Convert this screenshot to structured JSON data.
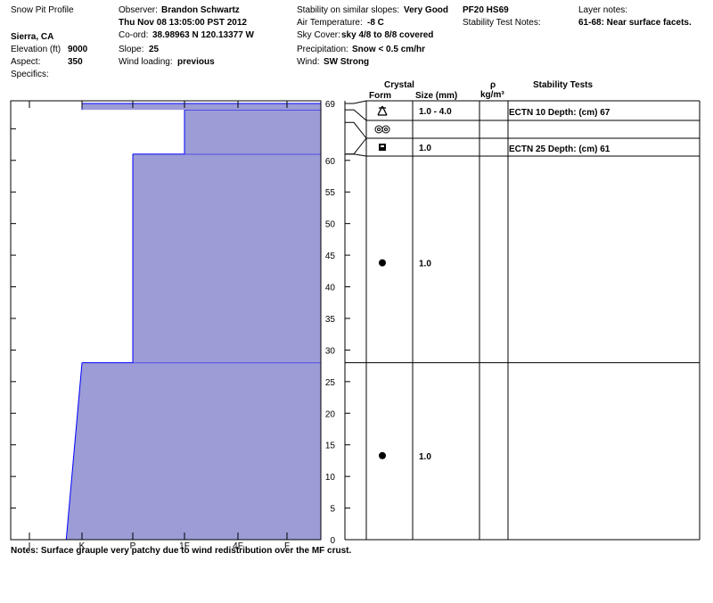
{
  "header": {
    "title": "Snow Pit Profile",
    "location": "Sierra, CA",
    "elevation_label": "Elevation (ft)",
    "elevation_value": "9000",
    "aspect_label": "Aspect:",
    "aspect_value": "350",
    "specifics_label": "Specifics:",
    "observer_label": "Observer:",
    "observer_value": "Brandon Schwartz",
    "datetime": "Thu Nov 08 13:05:00 PST 2012",
    "coord_label": "Co-ord:",
    "coord_value": "38.98963 N 120.13377 W",
    "slope_label": "Slope:",
    "slope_value": "25",
    "wind_loading_label": "Wind loading:",
    "wind_loading_value": "previous",
    "stability_label": "Stability on similar slopes:",
    "stability_value": "Very Good",
    "air_temp_label": "Air Temperature:",
    "air_temp_value": "-8 C",
    "sky_label": "Sky Cover:",
    "sky_value": "sky 4/8 to 8/8 covered",
    "precip_label": "Precipitation:",
    "precip_value": "Snow < 0.5 cm/hr",
    "wind_label": "Wind:",
    "wind_value": "SW Strong",
    "pf_hs": "PF20 HS69",
    "stab_test_notes_label": "Stability Test Notes:",
    "layer_notes_label": "Layer notes:",
    "layer_notes_value": "61-68: Near surface facets."
  },
  "columns": {
    "crystal": "Crystal",
    "form": "Form",
    "size": "Size (mm)",
    "rho": "ρ",
    "rho_unit": "kg/m³",
    "stability_tests": "Stability Tests"
  },
  "notes": "Notes:  Surface grauple very patchy due to wind redistribution over the MF crust.",
  "chart_data": {
    "type": "area",
    "x_categories": [
      "I",
      "K",
      "P",
      "1F",
      "4F",
      "F"
    ],
    "height_ticks": [
      0,
      5,
      10,
      15,
      20,
      25,
      30,
      35,
      40,
      45,
      50,
      55,
      60,
      69
    ],
    "ylim": [
      0,
      69
    ],
    "hs": 69,
    "hardness_profile": [
      {
        "bottom": 0,
        "top": 28,
        "hardness_bottom": 1.7,
        "hardness_top": 2.0
      },
      {
        "bottom": 28,
        "top": 61,
        "hardness_bottom": 3.0,
        "hardness_top": 3.0
      },
      {
        "bottom": 61,
        "top": 68,
        "hardness_bottom": 4.0,
        "hardness_top": 4.0
      },
      {
        "bottom": 68,
        "top": 69,
        "hardness_bottom": 2.0,
        "hardness_top": 2.0
      }
    ],
    "layers": [
      {
        "top": 69,
        "bottom": 68,
        "form": "graupel",
        "size": "1.0 - 4.0"
      },
      {
        "top": 68,
        "bottom": 66,
        "form": "melt-freeze-crust",
        "size": ""
      },
      {
        "top": 66,
        "bottom": 61,
        "form": "faceted",
        "size": "1.0"
      },
      {
        "top": 61,
        "bottom": 28,
        "form": "rounded",
        "size": "1.0"
      },
      {
        "top": 28,
        "bottom": 0,
        "form": "rounded",
        "size": "1.0"
      }
    ],
    "stability_tests": [
      {
        "text": "ECTN 10  Depth: (cm) 67",
        "height": 67
      },
      {
        "text": "ECTN 25  Depth: (cm) 61",
        "height": 61
      }
    ],
    "colors": {
      "fill": "#9c9cd6",
      "edge": "#0000ff"
    }
  }
}
